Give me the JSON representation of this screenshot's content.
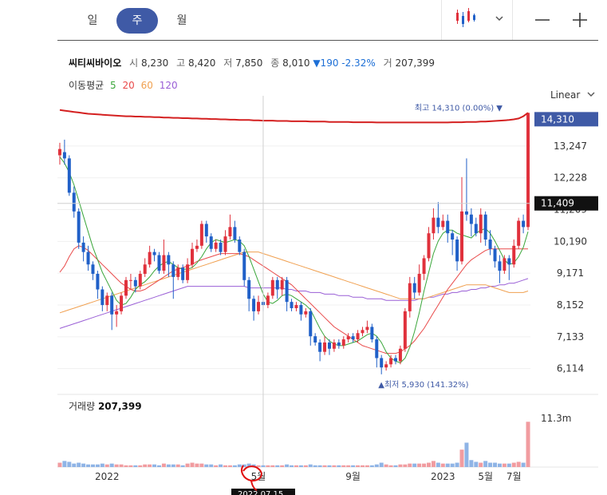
{
  "period_tabs": [
    {
      "label": "일",
      "active": false
    },
    {
      "label": "주",
      "active": true
    },
    {
      "label": "월",
      "active": false
    }
  ],
  "toolbar": {
    "chart_type_icon": "candlestick-icon",
    "zoom_out_icon": "minus-icon",
    "zoom_in_icon": "plus-icon"
  },
  "quote": {
    "name": "씨티씨바이오",
    "open_label": "시",
    "open": "8,230",
    "high_label": "고",
    "high": "8,420",
    "low_label": "저",
    "low": "7,850",
    "close_label": "종",
    "close": "8,010",
    "change": "▼190 -2.32%",
    "volume_label": "거",
    "volume": "207,399"
  },
  "moving_average": {
    "label": "이동평균",
    "periods": [
      {
        "label": "5",
        "color": "#3aa63a"
      },
      {
        "label": "20",
        "color": "#e94a4a"
      },
      {
        "label": "60",
        "color": "#f0a050"
      },
      {
        "label": "120",
        "color": "#9a5fd6"
      }
    ]
  },
  "scale_selector": {
    "label": "Linear"
  },
  "volume_panel": {
    "label": "거래량",
    "value": "207,399"
  },
  "colors": {
    "up": "#e0313c",
    "down": "#2060c8",
    "accent": "#3f5aa6",
    "overlay": "#d42020"
  },
  "chart_data": {
    "type": "candlestick",
    "y_ticks": [
      "13,247",
      "12,228",
      "11,209",
      "10,190",
      "9,171",
      "8,152",
      "7,133",
      "6,114"
    ],
    "ylim": [
      5900,
      14600
    ],
    "x_ticks": [
      "2022",
      "5월",
      "9월",
      "2023",
      "5월",
      "7월"
    ],
    "high_marker": {
      "label": "최고",
      "value": "14,310",
      "pct": "(0.00%)",
      "badge": "14,310"
    },
    "low_marker": {
      "label": "최저",
      "value": "5,930",
      "pct": "(141.32%)"
    },
    "crosshair_price": "11,409",
    "volume_max_label": "11.3m",
    "date_label": "2022.07.15",
    "candles": [
      [
        12950,
        13150,
        12650,
        13350
      ],
      [
        13050,
        12850,
        12650,
        13450
      ],
      [
        12850,
        11750,
        11650,
        12950
      ],
      [
        11750,
        11150,
        10950,
        11950
      ],
      [
        11150,
        10150,
        9950,
        11250
      ],
      [
        10150,
        9850,
        9550,
        10350
      ],
      [
        9850,
        9450,
        9250,
        10050
      ],
      [
        9450,
        9150,
        8950,
        9550
      ],
      [
        9150,
        8650,
        8350,
        9250
      ],
      [
        8650,
        8150,
        7950,
        8750
      ],
      [
        8150,
        8450,
        7950,
        8550
      ],
      [
        8450,
        7850,
        7350,
        8550
      ],
      [
        7850,
        7950,
        7450,
        8150
      ],
      [
        7950,
        8450,
        7850,
        8550
      ],
      [
        8450,
        8950,
        8350,
        9050
      ],
      [
        8950,
        8950,
        8650,
        9150
      ],
      [
        8950,
        8750,
        8550,
        9050
      ],
      [
        8750,
        9150,
        8650,
        9250
      ],
      [
        9150,
        9450,
        9050,
        9650
      ],
      [
        9450,
        9850,
        9350,
        10050
      ],
      [
        9850,
        9750,
        9550,
        9950
      ],
      [
        9750,
        9250,
        9150,
        9850
      ],
      [
        9250,
        9750,
        9150,
        10250
      ],
      [
        9750,
        9450,
        9050,
        9850
      ],
      [
        9450,
        9050,
        8350,
        9550
      ],
      [
        9050,
        9350,
        8950,
        9450
      ],
      [
        9350,
        8950,
        8850,
        9450
      ],
      [
        8950,
        9450,
        8850,
        9650
      ],
      [
        9450,
        9950,
        9350,
        10150
      ],
      [
        9950,
        10050,
        9850,
        10250
      ],
      [
        10050,
        10750,
        9950,
        10850
      ],
      [
        10750,
        10350,
        10150,
        10850
      ],
      [
        10350,
        9950,
        9850,
        10450
      ],
      [
        9950,
        10150,
        9850,
        10250
      ],
      [
        10150,
        9850,
        9750,
        10250
      ],
      [
        9850,
        10350,
        9750,
        10550
      ],
      [
        10350,
        10650,
        10250,
        11050
      ],
      [
        10650,
        10250,
        10150,
        10850
      ],
      [
        10250,
        9850,
        9750,
        10350
      ],
      [
        9850,
        8950,
        8750,
        9950
      ],
      [
        8950,
        8350,
        7950,
        9050
      ],
      [
        8350,
        7950,
        7650,
        8450
      ],
      [
        7950,
        8250,
        7850,
        8450
      ],
      [
        8250,
        8150,
        7950,
        8450
      ],
      [
        8150,
        8450,
        8050,
        8550
      ],
      [
        8450,
        8950,
        8350,
        9050
      ],
      [
        8950,
        8650,
        8350,
        9050
      ],
      [
        8650,
        8950,
        8450,
        9050
      ],
      [
        8950,
        8250,
        7950,
        9050
      ],
      [
        8250,
        8050,
        7950,
        8350
      ],
      [
        8050,
        8150,
        7950,
        8250
      ],
      [
        8150,
        7850,
        7650,
        8250
      ],
      [
        7850,
        7950,
        7750,
        8050
      ],
      [
        7950,
        7150,
        6850,
        8050
      ],
      [
        7150,
        6950,
        6850,
        7250
      ],
      [
        6950,
        6650,
        6350,
        7050
      ],
      [
        6650,
        6950,
        6550,
        7150
      ],
      [
        6950,
        6750,
        6550,
        7050
      ],
      [
        6750,
        6950,
        6650,
        7050
      ],
      [
        6950,
        6850,
        6750,
        7050
      ],
      [
        6850,
        7050,
        6750,
        7150
      ],
      [
        7050,
        7150,
        6950,
        7250
      ],
      [
        7150,
        7050,
        6950,
        7250
      ],
      [
        7050,
        7250,
        6950,
        7350
      ],
      [
        7250,
        7350,
        7150,
        7450
      ],
      [
        7350,
        7450,
        7250,
        7650
      ],
      [
        7450,
        7050,
        6950,
        7550
      ],
      [
        7050,
        6450,
        6150,
        7150
      ],
      [
        6450,
        6150,
        5930,
        6550
      ],
      [
        6150,
        6250,
        6050,
        6350
      ],
      [
        6250,
        6450,
        6150,
        6550
      ],
      [
        6450,
        6350,
        6250,
        6550
      ],
      [
        6350,
        6750,
        6250,
        6850
      ],
      [
        6750,
        7950,
        6650,
        8050
      ],
      [
        7950,
        8850,
        7750,
        9050
      ],
      [
        8850,
        8550,
        8350,
        9050
      ],
      [
        8550,
        9150,
        8450,
        9450
      ],
      [
        9150,
        9650,
        8950,
        9750
      ],
      [
        9650,
        10450,
        9550,
        10650
      ],
      [
        10450,
        10950,
        10250,
        11250
      ],
      [
        10950,
        10650,
        10450,
        11450
      ],
      [
        10650,
        10850,
        10550,
        11050
      ],
      [
        10850,
        10450,
        10150,
        11050
      ],
      [
        10450,
        10250,
        9750,
        10550
      ],
      [
        10250,
        9550,
        9250,
        10350
      ],
      [
        9550,
        11150,
        9450,
        12250
      ],
      [
        11150,
        11050,
        10850,
        12850
      ],
      [
        11050,
        10750,
        10350,
        11250
      ],
      [
        10750,
        10450,
        10350,
        10950
      ],
      [
        10450,
        11050,
        10150,
        11250
      ],
      [
        11050,
        10250,
        10050,
        11150
      ],
      [
        10250,
        9950,
        9750,
        10550
      ],
      [
        9950,
        9550,
        9350,
        10050
      ],
      [
        9550,
        9250,
        8850,
        9750
      ],
      [
        9250,
        9650,
        9150,
        9750
      ],
      [
        9650,
        9450,
        8950,
        9750
      ],
      [
        9450,
        10050,
        9350,
        10250
      ],
      [
        10050,
        10850,
        9950,
        10950
      ],
      [
        10850,
        10650,
        10450,
        11050
      ],
      [
        10650,
        14310,
        10550,
        14310
      ]
    ],
    "volume": [
      0.05,
      0.07,
      0.06,
      0.04,
      0.05,
      0.04,
      0.03,
      0.03,
      0.03,
      0.04,
      0.03,
      0.04,
      0.03,
      0.03,
      0.02,
      0.02,
      0.02,
      0.02,
      0.03,
      0.03,
      0.03,
      0.02,
      0.04,
      0.03,
      0.03,
      0.03,
      0.02,
      0.04,
      0.05,
      0.04,
      0.04,
      0.03,
      0.03,
      0.02,
      0.03,
      0.02,
      0.02,
      0.02,
      0.03,
      0.03,
      0.04,
      0.03,
      0.02,
      0.02,
      0.02,
      0.02,
      0.02,
      0.02,
      0.03,
      0.02,
      0.02,
      0.02,
      0.02,
      0.03,
      0.02,
      0.02,
      0.02,
      0.02,
      0.02,
      0.02,
      0.02,
      0.02,
      0.02,
      0.02,
      0.02,
      0.02,
      0.02,
      0.03,
      0.05,
      0.03,
      0.02,
      0.02,
      0.03,
      0.03,
      0.04,
      0.04,
      0.04,
      0.04,
      0.05,
      0.07,
      0.05,
      0.04,
      0.04,
      0.04,
      0.05,
      0.2,
      0.28,
      0.08,
      0.06,
      0.05,
      0.07,
      0.05,
      0.05,
      0.04,
      0.04,
      0.04,
      0.05,
      0.06,
      0.05,
      0.52
    ],
    "ma5": [
      12900,
      12700,
      12400,
      12000,
      11500,
      11000,
      10500,
      10000,
      9600,
      9200,
      8900,
      8600,
      8300,
      8150,
      8200,
      8400,
      8650,
      8800,
      8900,
      9050,
      9250,
      9400,
      9500,
      9550,
      9450,
      9350,
      9300,
      9300,
      9350,
      9500,
      9700,
      9950,
      10150,
      10250,
      10200,
      10150,
      10200,
      10250,
      10200,
      10050,
      9700,
      9300,
      8900,
      8500,
      8250,
      8200,
      8300,
      8450,
      8500,
      8450,
      8350,
      8250,
      8150,
      8000,
      7700,
      7400,
      7150,
      7000,
      6900,
      6850,
      6850,
      6900,
      6950,
      7000,
      7100,
      7200,
      7250,
      7150,
      6950,
      6650,
      6450,
      6350,
      6300,
      6450,
      6800,
      7300,
      7900,
      8600,
      9200,
      9800,
      10200,
      10450,
      10550,
      10550,
      10450,
      10400,
      10350,
      10300,
      10450,
      10550,
      10600,
      10450,
      10200,
      9900,
      9600,
      9450,
      9500,
      9700,
      10000,
      10500
    ],
    "ma20": [
      9200,
      9400,
      9700,
      9950,
      10050,
      10000,
      9900,
      9750,
      9600,
      9450,
      9300,
      9150,
      9000,
      8850,
      8750,
      8650,
      8600,
      8600,
      8650,
      8750,
      8850,
      8950,
      9050,
      9150,
      9250,
      9300,
      9350,
      9400,
      9450,
      9550,
      9600,
      9650,
      9700,
      9750,
      9800,
      9800,
      9800,
      9800,
      9800,
      9750,
      9700,
      9600,
      9500,
      9400,
      9300,
      9200,
      9100,
      9000,
      8900,
      8800,
      8650,
      8500,
      8350,
      8200,
      8050,
      7900,
      7750,
      7600,
      7450,
      7350,
      7250,
      7150,
      7050,
      6950,
      6850,
      6800,
      6750,
      6700,
      6650,
      6600,
      6600,
      6600,
      6650,
      6750,
      6850,
      7000,
      7200,
      7400,
      7650,
      7900,
      8150,
      8400,
      8650,
      8850,
      9050,
      9250,
      9450,
      9600,
      9700,
      9800,
      9900,
      9950,
      9950,
      9950,
      9950,
      9950,
      9950,
      9950,
      9950,
      9950
    ],
    "ma60": [
      7900,
      7950,
      8000,
      8050,
      8100,
      8150,
      8200,
      8250,
      8300,
      8350,
      8400,
      8450,
      8500,
      8550,
      8600,
      8650,
      8700,
      8750,
      8800,
      8850,
      8900,
      8950,
      9000,
      9050,
      9100,
      9150,
      9200,
      9250,
      9300,
      9350,
      9400,
      9450,
      9500,
      9550,
      9600,
      9650,
      9700,
      9750,
      9800,
      9850,
      9850,
      9850,
      9850,
      9800,
      9750,
      9700,
      9650,
      9600,
      9550,
      9500,
      9450,
      9400,
      9350,
      9300,
      9250,
      9200,
      9150,
      9100,
      9050,
      9000,
      8950,
      8900,
      8850,
      8800,
      8750,
      8700,
      8650,
      8600,
      8550,
      8500,
      8450,
      8400,
      8350,
      8350,
      8350,
      8350,
      8350,
      8350,
      8400,
      8450,
      8500,
      8550,
      8600,
      8650,
      8700,
      8750,
      8800,
      8800,
      8800,
      8800,
      8800,
      8750,
      8700,
      8650,
      8600,
      8550,
      8550,
      8550,
      8550,
      8600
    ],
    "ma120": [
      7400,
      7450,
      7500,
      7550,
      7600,
      7650,
      7700,
      7750,
      7800,
      7850,
      7900,
      7950,
      8000,
      8050,
      8100,
      8150,
      8200,
      8250,
      8300,
      8350,
      8400,
      8450,
      8500,
      8550,
      8600,
      8650,
      8700,
      8750,
      8750,
      8750,
      8750,
      8750,
      8750,
      8750,
      8750,
      8750,
      8750,
      8750,
      8750,
      8750,
      8700,
      8700,
      8700,
      8700,
      8700,
      8700,
      8700,
      8700,
      8650,
      8650,
      8600,
      8600,
      8600,
      8550,
      8550,
      8550,
      8500,
      8500,
      8500,
      8450,
      8450,
      8450,
      8400,
      8400,
      8400,
      8350,
      8350,
      8350,
      8350,
      8300,
      8300,
      8300,
      8300,
      8300,
      8300,
      8300,
      8350,
      8350,
      8400,
      8400,
      8450,
      8500,
      8500,
      8550,
      8550,
      8600,
      8600,
      8650,
      8650,
      8700,
      8700,
      8750,
      8750,
      8800,
      8800,
      8850,
      8850,
      8900,
      8950,
      9000
    ],
    "overlay_line": [
      14400,
      14380,
      14360,
      14340,
      14320,
      14300,
      14280,
      14270,
      14260,
      14250,
      14240,
      14230,
      14220,
      14210,
      14200,
      14200,
      14190,
      14190,
      14180,
      14180,
      14170,
      14170,
      14160,
      14160,
      14150,
      14150,
      14140,
      14140,
      14130,
      14130,
      14120,
      14120,
      14110,
      14110,
      14100,
      14100,
      14090,
      14090,
      14080,
      14080,
      14080,
      14070,
      14070,
      14060,
      14060,
      14060,
      14050,
      14050,
      14050,
      14040,
      14040,
      14040,
      14040,
      14030,
      14030,
      14030,
      14030,
      14020,
      14020,
      14020,
      14020,
      14020,
      14010,
      14010,
      14010,
      14010,
      14010,
      14000,
      14000,
      14000,
      14000,
      14000,
      14000,
      14000,
      14000,
      14000,
      14000,
      14000,
      14000,
      14000,
      14000,
      14000,
      14000,
      14010,
      14010,
      14010,
      14020,
      14020,
      14020,
      14030,
      14030,
      14040,
      14050,
      14060,
      14070,
      14080,
      14100,
      14130,
      14200,
      14310
    ]
  }
}
